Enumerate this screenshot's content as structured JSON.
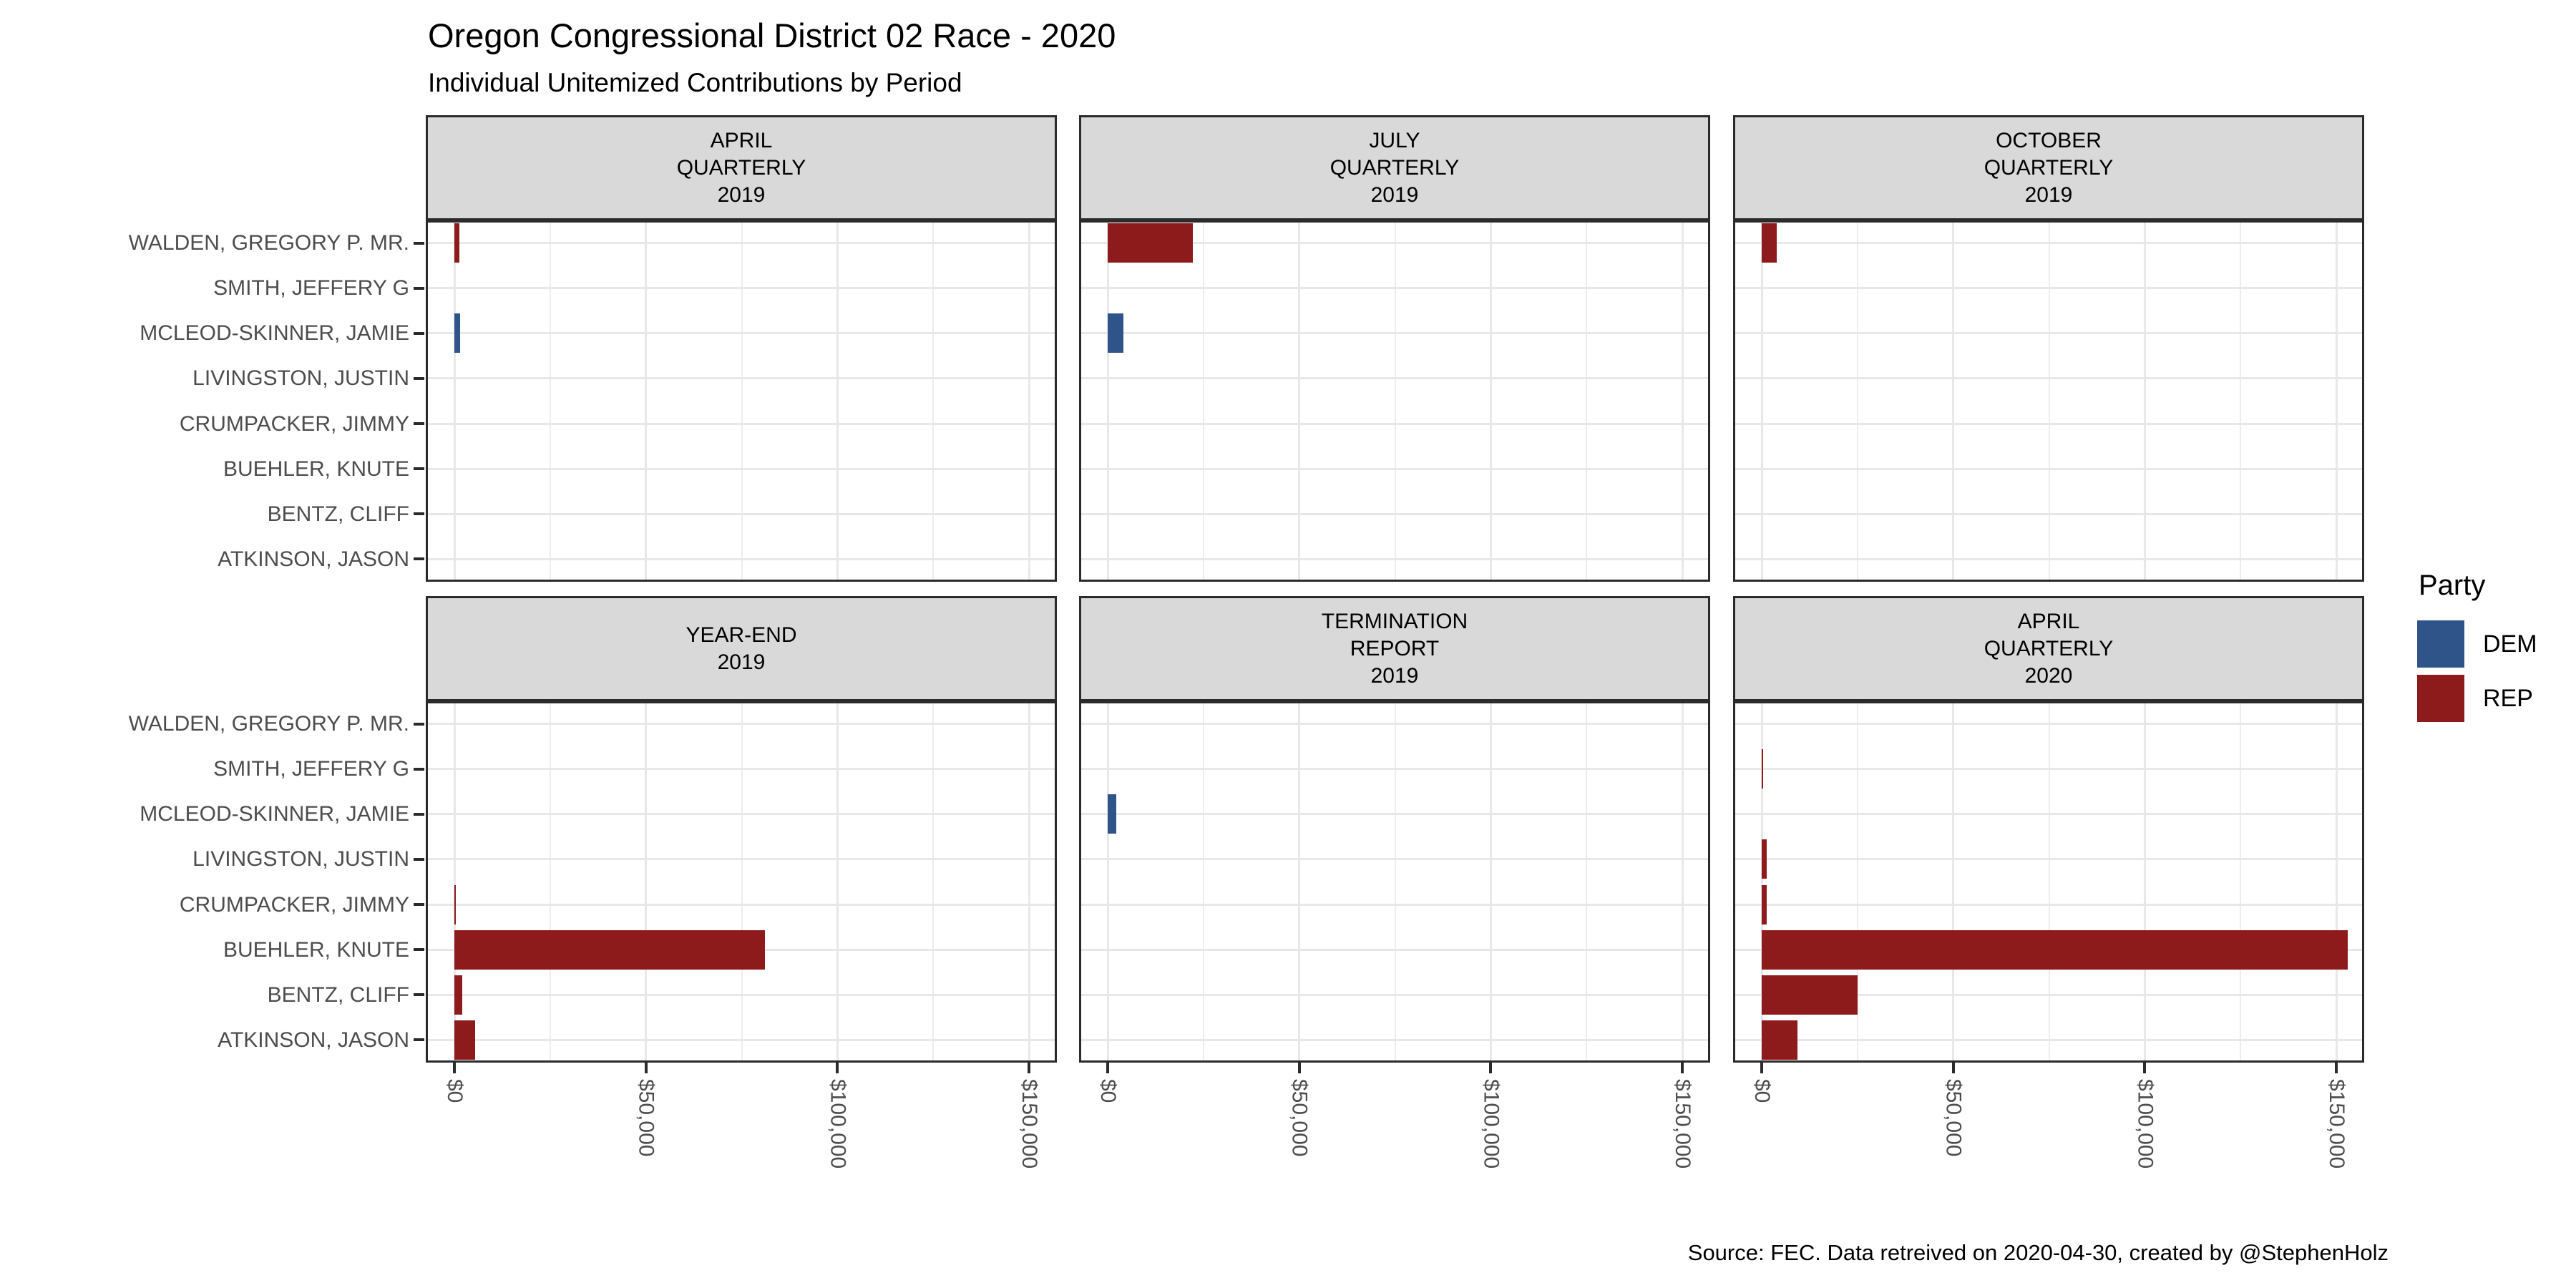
{
  "chart_data": {
    "type": "bar",
    "orientation": "horizontal",
    "title": "Oregon Congressional District 02 Race - 2020",
    "subtitle": "Individual Unitemized Contributions by Period",
    "caption": "Source: FEC. Data retreived on 2020-04-30, created by @StephenHolz",
    "legend": {
      "title": "Party",
      "position": "right",
      "entries": [
        {
          "label": "DEM",
          "color": "#2F548A"
        },
        {
          "label": "REP",
          "color": "#8E1B1B"
        }
      ]
    },
    "party_colors": {
      "DEM": "#2F548A",
      "REP": "#8E1B1B"
    },
    "x_axis": {
      "tick_labels": [
        "$0",
        "$50,000",
        "$100,000",
        "$150,000"
      ],
      "tick_values": [
        0,
        50000,
        100000,
        150000
      ],
      "minor_step": 25000,
      "max": 150000,
      "grid": true,
      "label_rotation_deg": 90
    },
    "y_categories": [
      "WALDEN, GREGORY P. MR.",
      "SMITH, JEFFERY G",
      "MCLEOD-SKINNER, JAMIE",
      "LIVINGSTON, JUSTIN",
      "CRUMPACKER, JIMMY",
      "BUEHLER, KNUTE",
      "BENTZ, CLIFF",
      "ATKINSON, JASON"
    ],
    "facets": [
      {
        "label_lines": [
          "APRIL",
          "QUARTERLY",
          "2019"
        ],
        "bars": [
          {
            "candidate": "WALDEN, GREGORY P. MR.",
            "party": "REP",
            "value": 1300
          },
          {
            "candidate": "MCLEOD-SKINNER, JAMIE",
            "party": "DEM",
            "value": 1500
          }
        ]
      },
      {
        "label_lines": [
          "JULY",
          "QUARTERLY",
          "2019"
        ],
        "bars": [
          {
            "candidate": "WALDEN, GREGORY P. MR.",
            "party": "REP",
            "value": 22300
          },
          {
            "candidate": "MCLEOD-SKINNER, JAMIE",
            "party": "DEM",
            "value": 4200
          }
        ]
      },
      {
        "label_lines": [
          "OCTOBER",
          "QUARTERLY",
          "2019"
        ],
        "bars": [
          {
            "candidate": "WALDEN, GREGORY P. MR.",
            "party": "REP",
            "value": 4000
          }
        ]
      },
      {
        "label_lines": [
          "YEAR-END",
          "2019"
        ],
        "bars": [
          {
            "candidate": "CRUMPACKER, JIMMY",
            "party": "REP",
            "value": 300
          },
          {
            "candidate": "BUEHLER, KNUTE",
            "party": "REP",
            "value": 81000
          },
          {
            "candidate": "BENTZ, CLIFF",
            "party": "REP",
            "value": 2100
          },
          {
            "candidate": "ATKINSON, JASON",
            "party": "REP",
            "value": 5500
          }
        ]
      },
      {
        "label_lines": [
          "TERMINATION",
          "REPORT",
          "2019"
        ],
        "bars": [
          {
            "candidate": "MCLEOD-SKINNER, JAMIE",
            "party": "DEM",
            "value": 2200
          }
        ]
      },
      {
        "label_lines": [
          "APRIL",
          "QUARTERLY",
          "2020"
        ],
        "bars": [
          {
            "candidate": "SMITH, JEFFERY G",
            "party": "REP",
            "value": 300
          },
          {
            "candidate": "LIVINGSTON, JUSTIN",
            "party": "REP",
            "value": 1400
          },
          {
            "candidate": "CRUMPACKER, JIMMY",
            "party": "REP",
            "value": 1400
          },
          {
            "candidate": "BUEHLER, KNUTE",
            "party": "REP",
            "value": 153000
          },
          {
            "candidate": "BENTZ, CLIFF",
            "party": "REP",
            "value": 25000
          },
          {
            "candidate": "ATKINSON, JASON",
            "party": "REP",
            "value": 9400
          }
        ]
      }
    ]
  }
}
